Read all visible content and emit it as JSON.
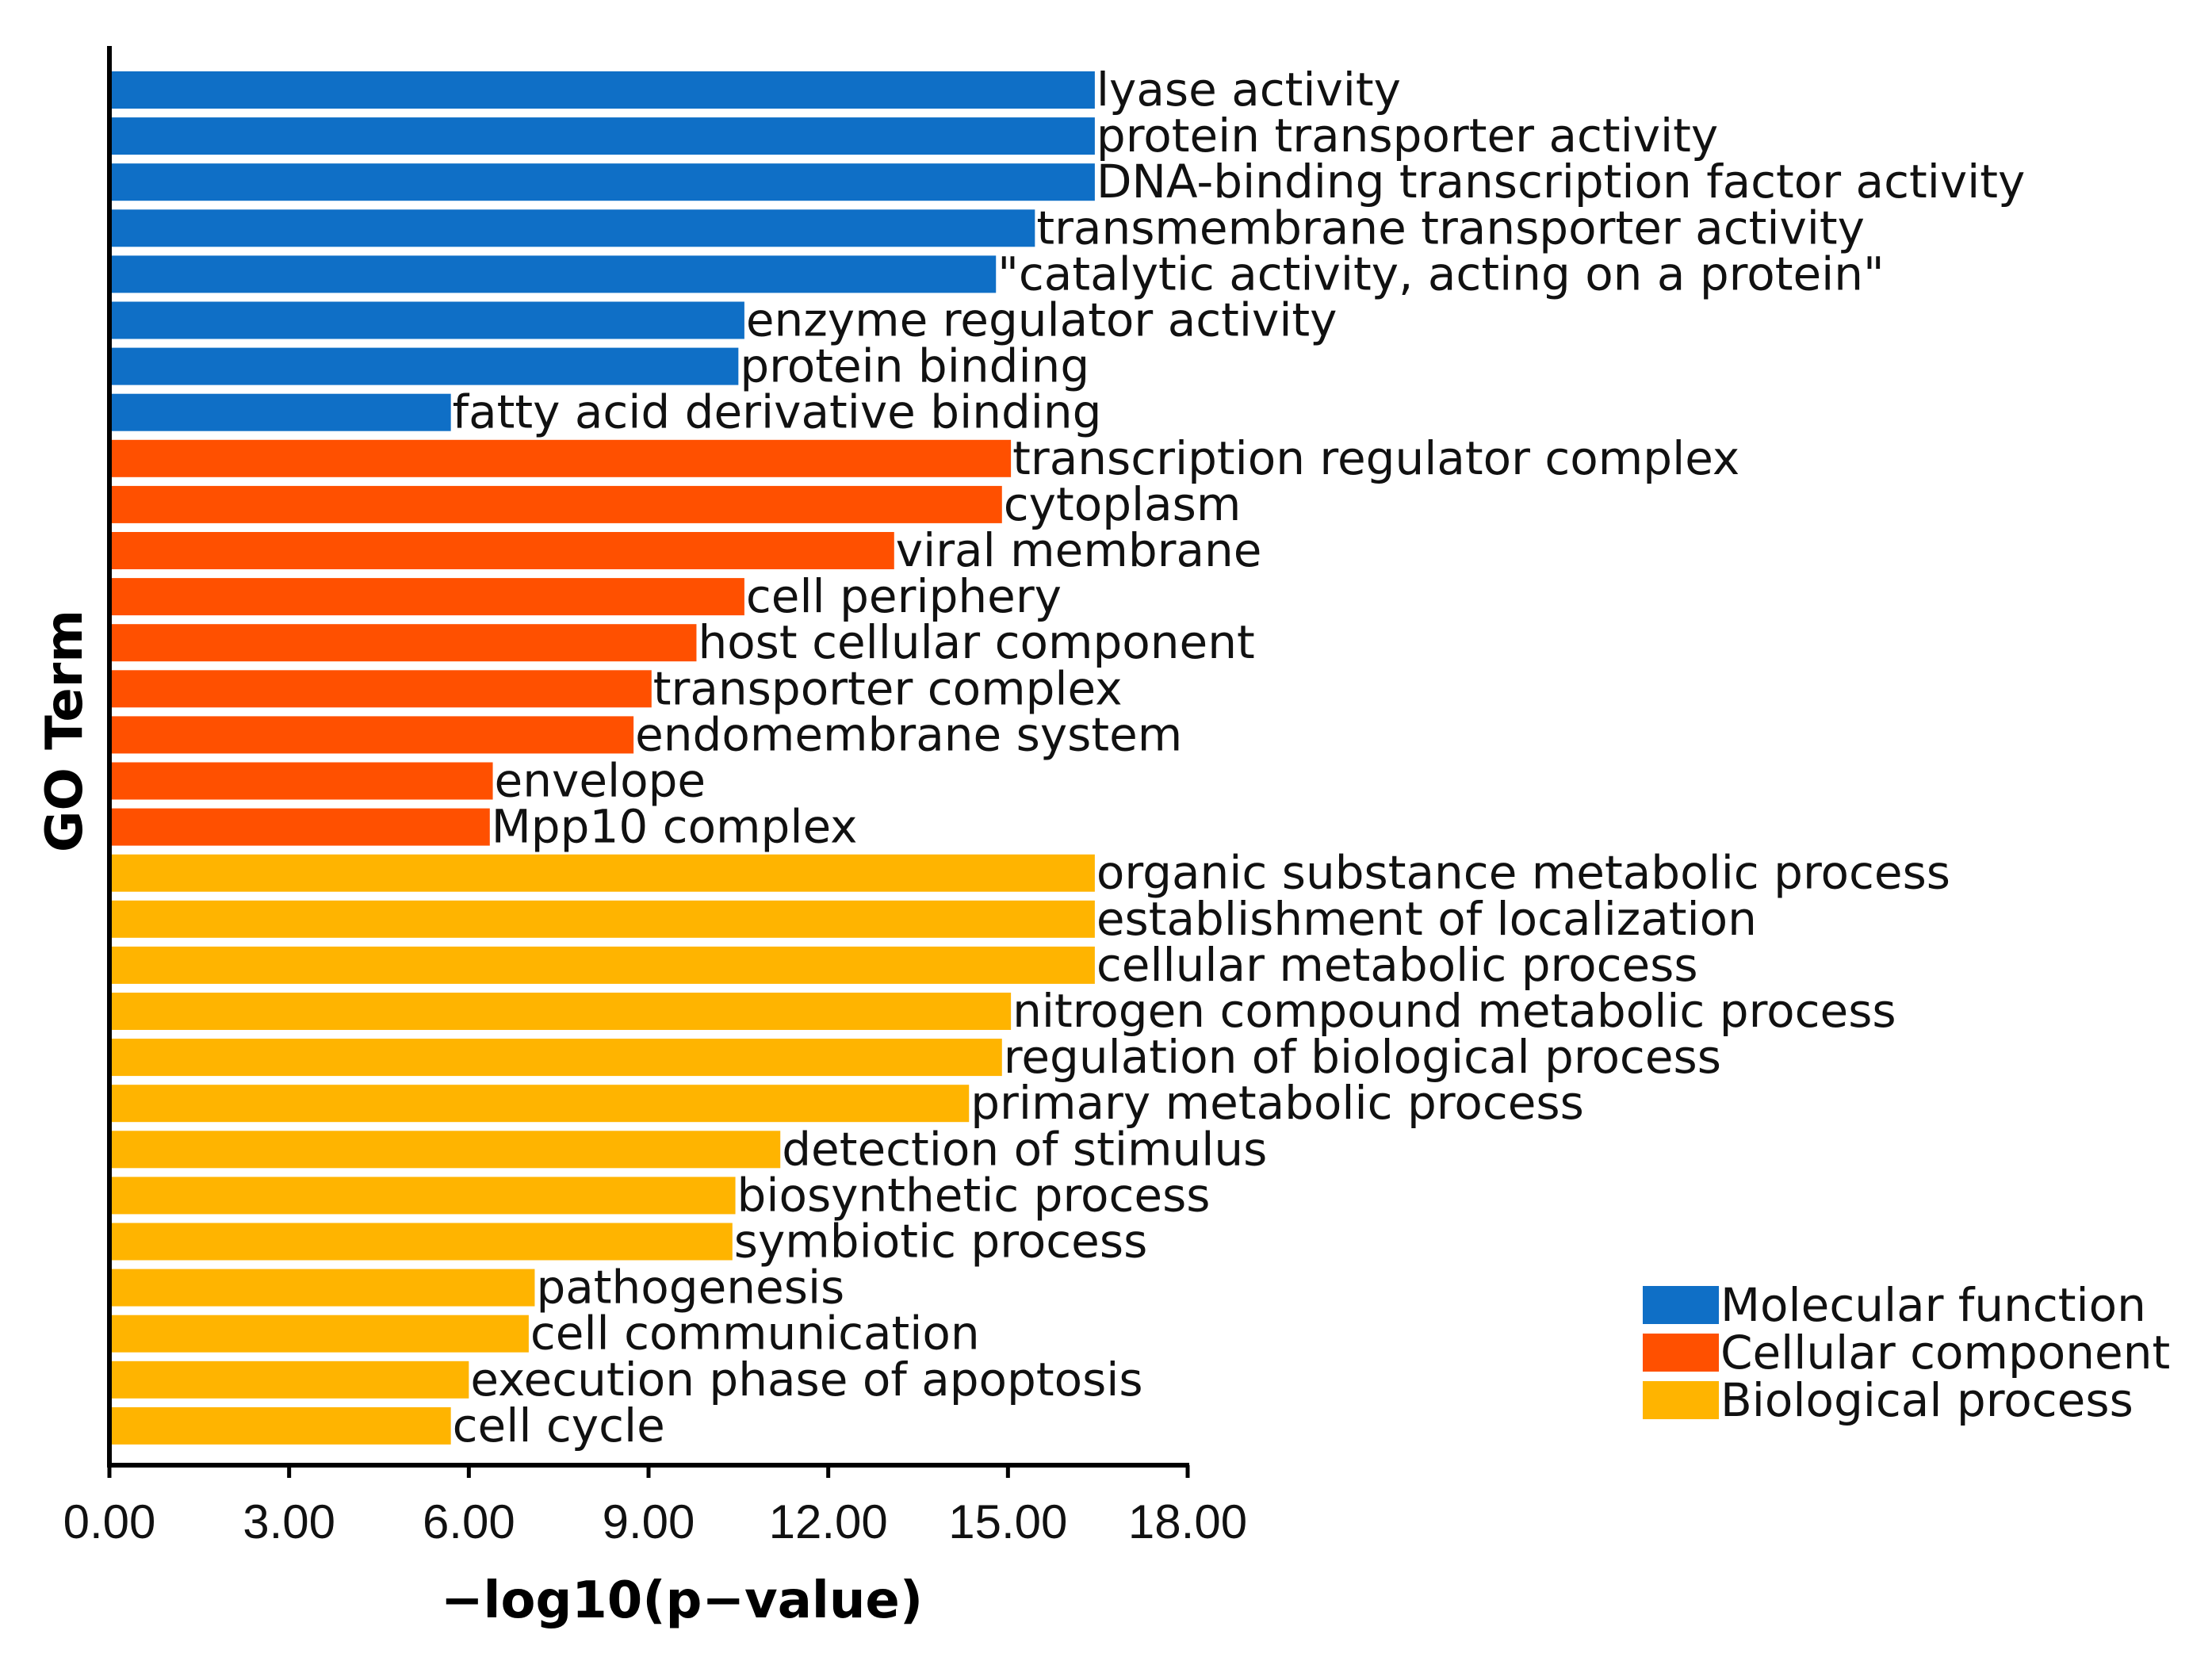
{
  "chart_data": {
    "type": "bar",
    "orientation": "horizontal",
    "xlabel": "−log10(p−value)",
    "ylabel": "GO Term",
    "xlim": [
      0,
      18
    ],
    "xticks": [
      "0.00",
      "3.00",
      "6.00",
      "9.00",
      "12.00",
      "15.00",
      "18.00"
    ],
    "grid": false,
    "legend_position": "bottom-right",
    "series": [
      {
        "name": "Molecular function",
        "color": "#0F6FC6",
        "categories": [
          "lyase activity",
          "protein transporter activity",
          "DNA-binding transcription factor activity",
          "transmembrane transporter activity",
          "\"catalytic activity, acting on a protein\"",
          "enzyme regulator activity",
          "protein binding",
          "fatty acid derivative binding"
        ],
        "values": [
          16.45,
          16.45,
          16.45,
          15.45,
          14.8,
          10.6,
          10.5,
          5.7
        ]
      },
      {
        "name": "Cellular component",
        "color": "#FF5000",
        "categories": [
          "transcription regulator complex",
          "cytoplasm",
          "viral membrane",
          "cell periphery",
          "host cellular component",
          "transporter complex",
          "endomembrane system",
          "envelope",
          "Mpp10 complex"
        ],
        "values": [
          15.05,
          14.9,
          13.1,
          10.6,
          9.8,
          9.05,
          8.75,
          6.4,
          6.35
        ]
      },
      {
        "name": "Biological process",
        "color": "#FFB400",
        "categories": [
          "organic substance metabolic process",
          "establishment of localization",
          "cellular metabolic process",
          "nitrogen compound metabolic process",
          "regulation of biological process",
          "primary metabolic process",
          "detection of stimulus",
          "biosynthetic process",
          "symbiotic process",
          "pathogenesis",
          "cell communication",
          "execution phase of apoptosis",
          "cell cycle"
        ],
        "values": [
          16.45,
          16.45,
          16.45,
          15.05,
          14.9,
          14.35,
          11.2,
          10.45,
          10.4,
          7.1,
          7.0,
          6.0,
          5.7
        ]
      }
    ]
  }
}
